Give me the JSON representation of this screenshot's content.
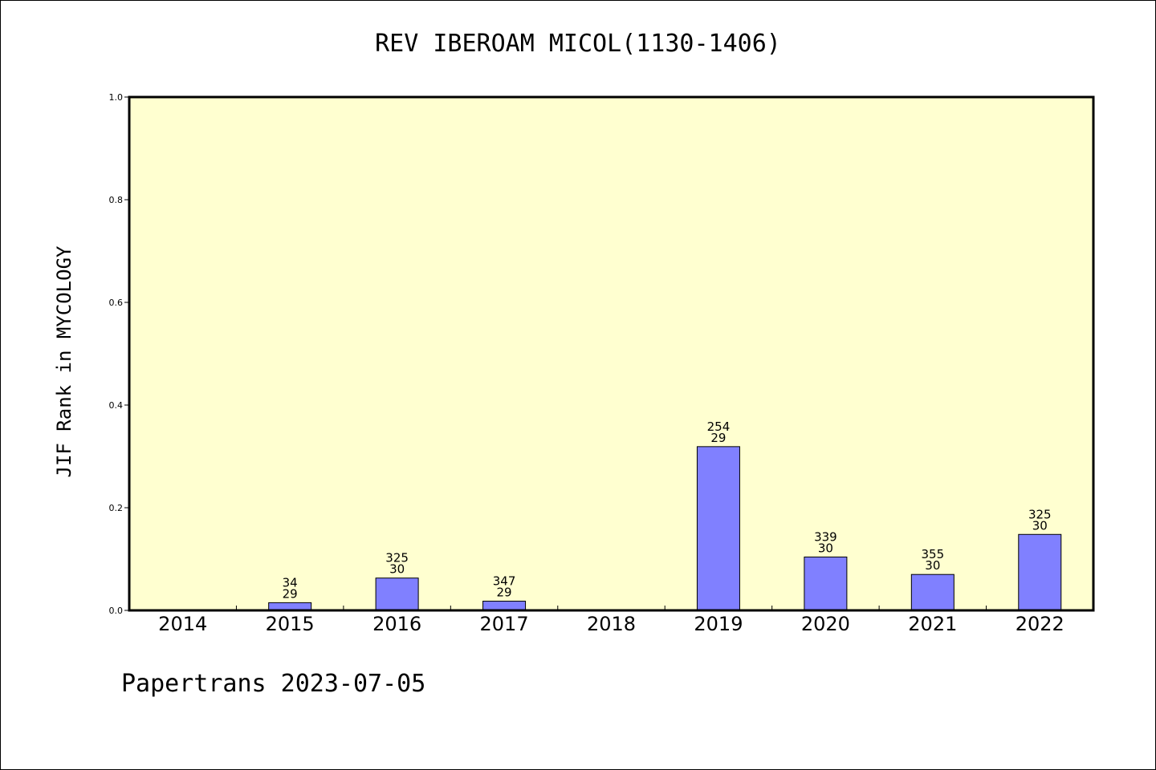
{
  "colors": {
    "plot_background": "#FFFFD0",
    "bar_fill": "#8080FF",
    "bar_stroke": "#000000",
    "axis": "#000000"
  },
  "footer": {
    "credit": "Papertrans 2023-07-05"
  },
  "chart_data": {
    "type": "bar",
    "title": "REV IBEROAM MICOL(1130-1406)",
    "xlabel": "",
    "ylabel": "JIF Rank in MYCOLOGY",
    "ylim": [
      0,
      1.0
    ],
    "yticks": [
      "0.0",
      "0.2",
      "0.4",
      "0.6",
      "0.8",
      "1.0"
    ],
    "grid": false,
    "categories": [
      "2014",
      "2015",
      "2016",
      "2017",
      "2018",
      "2019",
      "2020",
      "2021",
      "2022"
    ],
    "values": [
      null,
      0.015,
      0.063,
      0.018,
      null,
      0.319,
      0.104,
      0.07,
      0.148
    ],
    "label_top": [
      null,
      "34",
      "325",
      "347",
      null,
      "254",
      "339",
      "355",
      "325"
    ],
    "label_bottom": [
      null,
      "29",
      "30",
      "29",
      null,
      "29",
      "30",
      "30",
      "30"
    ]
  }
}
